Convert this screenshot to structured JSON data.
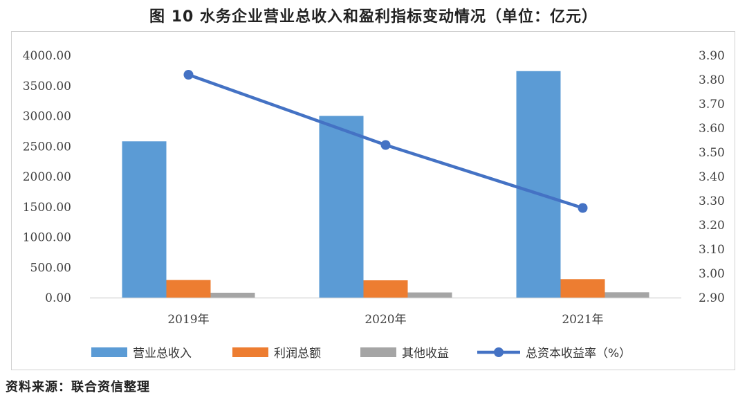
{
  "title": "图 10  水务企业营业总收入和盈利指标变动情况（单位：亿元）",
  "source": "资料来源：联合资信整理",
  "chart_data": {
    "type": "bar",
    "title": "图 10  水务企业营业总收入和盈利指标变动情况（单位：亿元）",
    "categories": [
      "2019年",
      "2020年",
      "2021年"
    ],
    "series": [
      {
        "name": "营业总收入",
        "type": "bar",
        "axis": "left",
        "color": "#5b9bd5",
        "values": [
          2580,
          3000,
          3740
        ]
      },
      {
        "name": "利润总额",
        "type": "bar",
        "axis": "left",
        "color": "#ed7d31",
        "values": [
          290,
          285,
          305
        ]
      },
      {
        "name": "其他收益",
        "type": "bar",
        "axis": "left",
        "color": "#a5a5a5",
        "values": [
          80,
          85,
          88
        ]
      },
      {
        "name": "总资本收益率（%）",
        "type": "line",
        "axis": "right",
        "color": "#4472c4",
        "values": [
          3.82,
          3.53,
          3.27
        ]
      }
    ],
    "ylim_left": [
      0,
      4000
    ],
    "yticks_left": [
      "0.00",
      "500.00",
      "1000.00",
      "1500.00",
      "2000.00",
      "2500.00",
      "3000.00",
      "3500.00",
      "4000.00"
    ],
    "ylim_right": [
      2.9,
      3.9
    ],
    "yticks_right": [
      "2.90",
      "3.00",
      "3.10",
      "3.20",
      "3.30",
      "3.40",
      "3.50",
      "3.60",
      "3.70",
      "3.80",
      "3.90"
    ],
    "grid": false,
    "legend_position": "bottom"
  }
}
